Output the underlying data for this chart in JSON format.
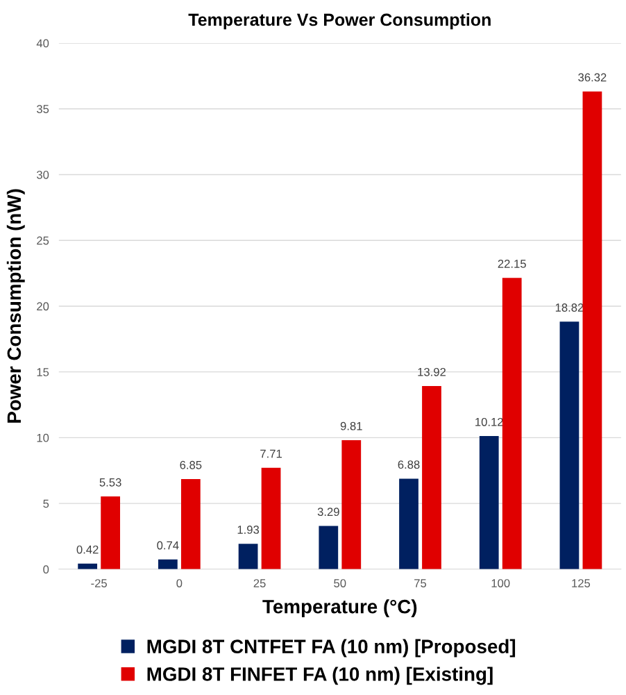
{
  "chart_data": {
    "type": "bar",
    "title": "Temperature Vs Power Consumption",
    "xlabel": "Temperature (°C)",
    "ylabel": "Power Consumption (nW)",
    "categories": [
      "-25",
      "0",
      "25",
      "50",
      "75",
      "100",
      "125"
    ],
    "series": [
      {
        "name": "MGDI 8T CNTFET FA (10 nm) [Proposed]",
        "color": "#002060",
        "values": [
          0.42,
          0.74,
          1.93,
          3.29,
          6.88,
          10.12,
          18.82
        ]
      },
      {
        "name": "MGDI 8T FINFET FA (10 nm) [Existing]",
        "color": "#e00000",
        "values": [
          5.53,
          6.85,
          7.71,
          9.81,
          13.92,
          22.15,
          36.32
        ]
      }
    ],
    "ylim": [
      0,
      40
    ],
    "yticks": [
      0,
      5,
      10,
      15,
      20,
      25,
      30,
      35,
      40
    ],
    "grid": "y",
    "legend": "bottom",
    "data_labels": true
  }
}
